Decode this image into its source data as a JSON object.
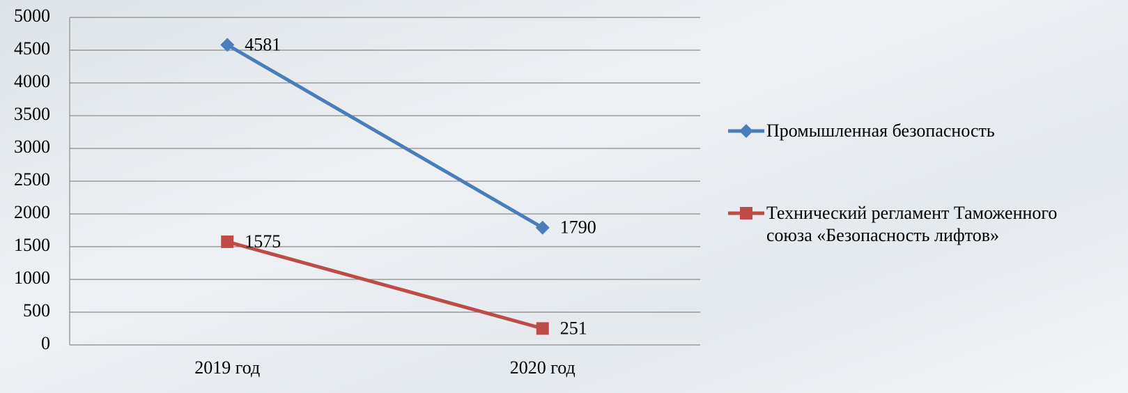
{
  "chart_data": {
    "type": "line",
    "categories": [
      "2019 год",
      "2020 год"
    ],
    "series": [
      {
        "name": "Промышленная безопасность",
        "color": "#4a7ebb",
        "marker": "diamond",
        "values": [
          4581,
          1790
        ]
      },
      {
        "name": "Технический регламент Таможенного союза «Безопасность лифтов»",
        "color": "#be4b48",
        "marker": "square",
        "values": [
          1575,
          251
        ]
      }
    ],
    "ylim": [
      0,
      5000
    ],
    "yticks": [
      0,
      500,
      1000,
      1500,
      2000,
      2500,
      3000,
      3500,
      4000,
      4500,
      5000
    ],
    "grid": true,
    "legend": "right"
  }
}
